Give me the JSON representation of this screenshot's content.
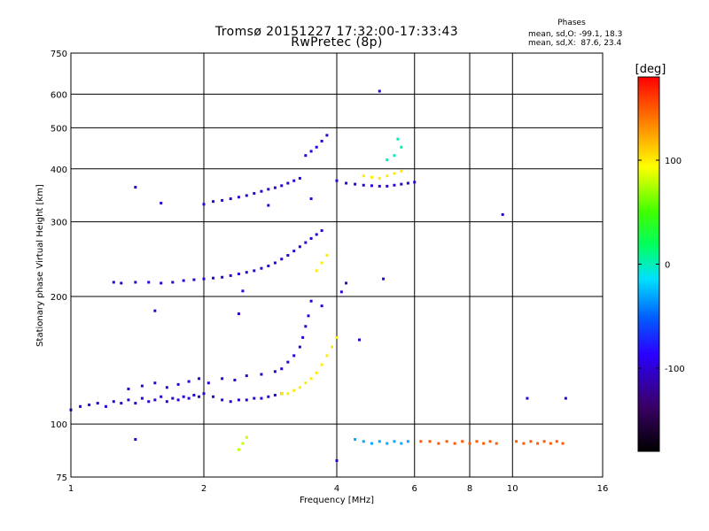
{
  "title": {
    "line1": "Tromsø 20151227 17:32:00-17:33:43",
    "line2": "RwPretec (8p)"
  },
  "phases_info": {
    "heading": "Phases",
    "o_line": "mean, sd,O: -99.1, 18.3",
    "x_line": "mean, sd,X:  87.6, 23.4"
  },
  "chart_data": {
    "type": "scatter",
    "title": "Tromsø 20151227 17:32:00-17:33:43",
    "subtitle": "RwPretec (8p)",
    "xlabel": "Frequency [MHz]",
    "ylabel": "Stationary phase Virtual Height [km]",
    "x_scale": "log2",
    "y_scale": "log",
    "xlim": [
      1,
      16
    ],
    "ylim": [
      75,
      750
    ],
    "x_ticks": [
      1,
      2,
      4,
      6,
      8,
      10,
      16
    ],
    "x_tick_labels": [
      "1",
      "2",
      "4",
      "6",
      "8",
      "10",
      "16"
    ],
    "y_ticks": [
      75,
      100,
      200,
      300,
      400,
      500,
      600,
      750
    ],
    "y_tick_labels": [
      "75",
      "100",
      "200",
      "300",
      "400",
      "500",
      "600",
      "750"
    ],
    "grid": true,
    "colorbar": {
      "label": "[deg]",
      "min": -180,
      "max": 180,
      "ticks": [
        100,
        0,
        -100
      ],
      "tick_labels": [
        "100",
        "0",
        "-100"
      ],
      "colormap": "rainbow-black-to-red"
    },
    "traces": [
      {
        "name": "",
        "color_phase": -100,
        "points": [
          [
            1.0,
            108
          ],
          [
            1.05,
            110
          ],
          [
            1.1,
            111
          ],
          [
            1.15,
            112
          ],
          [
            1.2,
            110
          ],
          [
            1.25,
            113
          ],
          [
            1.3,
            112
          ],
          [
            1.35,
            114
          ],
          [
            1.4,
            112
          ],
          [
            1.45,
            115
          ],
          [
            1.5,
            113
          ],
          [
            1.55,
            114
          ],
          [
            1.6,
            116
          ],
          [
            1.65,
            113
          ],
          [
            1.7,
            115
          ],
          [
            1.75,
            114
          ],
          [
            1.8,
            116
          ],
          [
            1.85,
            115
          ],
          [
            1.9,
            117
          ],
          [
            1.95,
            116
          ],
          [
            2.0,
            118
          ],
          [
            2.1,
            116
          ],
          [
            2.2,
            114
          ],
          [
            2.3,
            113
          ],
          [
            2.4,
            114
          ],
          [
            2.5,
            114
          ],
          [
            2.6,
            115
          ],
          [
            2.7,
            115
          ],
          [
            2.8,
            116
          ],
          [
            2.9,
            117
          ],
          [
            3.0,
            118
          ]
        ]
      },
      {
        "name": "",
        "color_phase": -100,
        "points": [
          [
            1.35,
            121
          ],
          [
            1.45,
            123
          ],
          [
            1.55,
            125
          ],
          [
            1.65,
            122
          ],
          [
            1.75,
            124
          ],
          [
            1.85,
            126
          ],
          [
            1.95,
            128
          ],
          [
            2.05,
            125
          ],
          [
            2.2,
            128
          ],
          [
            2.35,
            127
          ],
          [
            2.5,
            130
          ],
          [
            2.7,
            131
          ],
          [
            2.9,
            133
          ],
          [
            3.0,
            135
          ],
          [
            3.1,
            140
          ],
          [
            3.2,
            145
          ],
          [
            3.3,
            152
          ],
          [
            3.35,
            160
          ],
          [
            3.4,
            170
          ],
          [
            3.45,
            180
          ],
          [
            3.5,
            195
          ]
        ]
      },
      {
        "name": "",
        "color_phase": -100,
        "points": [
          [
            1.25,
            216
          ],
          [
            1.3,
            215
          ],
          [
            1.4,
            216
          ],
          [
            1.5,
            216
          ],
          [
            1.6,
            215
          ],
          [
            1.7,
            216
          ],
          [
            1.8,
            218
          ],
          [
            1.9,
            219
          ],
          [
            2.0,
            220
          ],
          [
            2.1,
            221
          ],
          [
            2.2,
            222
          ],
          [
            2.3,
            224
          ],
          [
            2.4,
            226
          ],
          [
            2.5,
            228
          ],
          [
            2.6,
            230
          ],
          [
            2.7,
            233
          ],
          [
            2.8,
            236
          ],
          [
            2.9,
            240
          ],
          [
            3.0,
            245
          ],
          [
            3.1,
            250
          ],
          [
            3.2,
            256
          ],
          [
            3.3,
            262
          ],
          [
            3.4,
            268
          ],
          [
            3.5,
            274
          ],
          [
            3.6,
            280
          ],
          [
            3.7,
            286
          ]
        ]
      },
      {
        "name": "",
        "color_phase": -100,
        "points": [
          [
            2.0,
            330
          ],
          [
            2.1,
            335
          ],
          [
            2.2,
            337
          ],
          [
            2.3,
            340
          ],
          [
            2.4,
            343
          ],
          [
            2.5,
            346
          ],
          [
            2.6,
            350
          ],
          [
            2.7,
            354
          ],
          [
            2.8,
            358
          ],
          [
            2.9,
            361
          ],
          [
            3.0,
            365
          ],
          [
            3.1,
            370
          ],
          [
            3.2,
            375
          ],
          [
            3.3,
            380
          ]
        ]
      },
      {
        "name": "",
        "color_phase": -100,
        "points": [
          [
            3.4,
            430
          ],
          [
            3.5,
            440
          ],
          [
            3.6,
            450
          ],
          [
            3.7,
            465
          ],
          [
            3.8,
            480
          ]
        ]
      },
      {
        "name": "",
        "color_phase": -100,
        "points": [
          [
            4.0,
            375
          ],
          [
            4.2,
            370
          ],
          [
            4.4,
            368
          ],
          [
            4.6,
            366
          ],
          [
            4.8,
            365
          ],
          [
            5.0,
            364
          ],
          [
            5.2,
            364
          ],
          [
            5.4,
            366
          ],
          [
            5.6,
            368
          ],
          [
            5.8,
            370
          ],
          [
            6.0,
            372
          ]
        ]
      },
      {
        "name": "",
        "color_phase": 100,
        "points": [
          [
            3.0,
            118
          ],
          [
            3.1,
            118
          ],
          [
            3.2,
            120
          ],
          [
            3.3,
            122
          ],
          [
            3.4,
            125
          ],
          [
            3.5,
            128
          ],
          [
            3.6,
            132
          ],
          [
            3.7,
            138
          ],
          [
            3.8,
            145
          ],
          [
            3.9,
            152
          ],
          [
            4.0,
            160
          ],
          [
            3.6,
            230
          ],
          [
            3.7,
            240
          ],
          [
            3.8,
            250
          ]
        ]
      },
      {
        "name": "",
        "color_phase": 100,
        "points": [
          [
            4.6,
            385
          ],
          [
            4.8,
            382
          ],
          [
            5.0,
            380
          ],
          [
            5.2,
            385
          ],
          [
            5.4,
            390
          ],
          [
            5.6,
            395
          ]
        ]
      },
      {
        "name": "",
        "color_phase": 0,
        "points": [
          [
            5.2,
            420
          ],
          [
            5.4,
            430
          ],
          [
            5.6,
            450
          ],
          [
            5.5,
            470
          ]
        ]
      },
      {
        "name": "",
        "color_phase": 150,
        "points": [
          [
            6.2,
            91
          ],
          [
            6.5,
            91
          ],
          [
            6.8,
            90
          ],
          [
            7.1,
            91
          ],
          [
            7.4,
            90
          ],
          [
            7.7,
            91
          ],
          [
            8.0,
            90
          ],
          [
            8.3,
            91
          ],
          [
            8.6,
            90
          ],
          [
            8.9,
            91
          ],
          [
            9.2,
            90
          ],
          [
            10.2,
            91
          ],
          [
            10.6,
            90
          ],
          [
            11.0,
            91
          ],
          [
            11.4,
            90
          ],
          [
            11.8,
            91
          ],
          [
            12.2,
            90
          ],
          [
            12.6,
            91
          ],
          [
            13.0,
            90
          ]
        ]
      },
      {
        "name": "",
        "color_phase": -30,
        "points": [
          [
            4.4,
            92
          ],
          [
            4.6,
            91
          ],
          [
            4.8,
            90
          ],
          [
            5.0,
            91
          ],
          [
            5.2,
            90
          ],
          [
            5.4,
            91
          ],
          [
            5.6,
            90
          ],
          [
            5.8,
            91
          ]
        ]
      },
      {
        "name": "",
        "color_phase": 80,
        "points": [
          [
            2.4,
            87
          ],
          [
            2.45,
            90
          ],
          [
            2.5,
            93
          ]
        ]
      }
    ],
    "isolated_points": [
      [
        1.4,
        362
      ],
      [
        1.6,
        332
      ],
      [
        1.55,
        185
      ],
      [
        2.4,
        182
      ],
      [
        2.45,
        206
      ],
      [
        2.8,
        328
      ],
      [
        3.5,
        340
      ],
      [
        5.0,
        610
      ],
      [
        5.1,
        220
      ],
      [
        9.5,
        312
      ],
      [
        1.4,
        92
      ],
      [
        4.0,
        82
      ],
      [
        10.8,
        115
      ],
      [
        13.2,
        115
      ],
      [
        4.5,
        158
      ],
      [
        4.1,
        205
      ],
      [
        4.2,
        215
      ],
      [
        3.7,
        190
      ]
    ]
  }
}
